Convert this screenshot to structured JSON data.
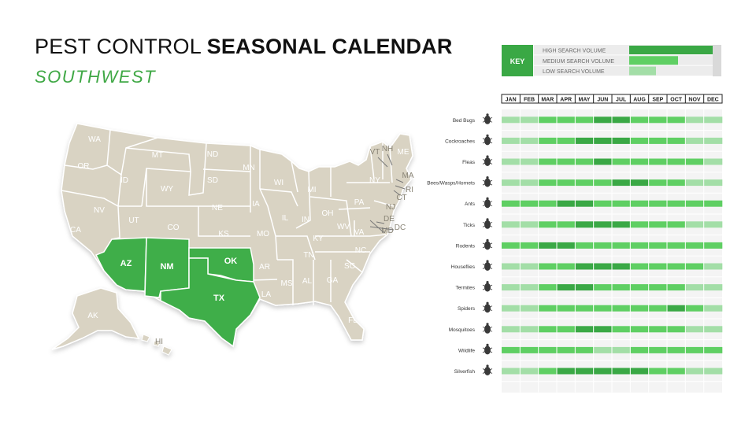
{
  "title": {
    "light": "PEST CONTROL ",
    "bold": "SEASONAL CALENDAR"
  },
  "subtitle": "SOUTHWEST",
  "colors": {
    "high": "#3aa845",
    "medium": "#5fcf63",
    "low": "#a3dea7",
    "background": "#ededed",
    "state_default": "#d9d3c3",
    "state_highlight": "#3fae49"
  },
  "key": {
    "label": "KEY",
    "levels": [
      {
        "label": "HIGH SEARCH VOLUME",
        "level": "high"
      },
      {
        "label": "MEDIUM SEARCH VOLUME",
        "level": "medium"
      },
      {
        "label": "LOW SEARCH VOLUME",
        "level": "low"
      }
    ]
  },
  "map": {
    "states": [
      "WA",
      "OR",
      "CA",
      "ID",
      "NV",
      "MT",
      "WY",
      "UT",
      "AZ",
      "CO",
      "NM",
      "ND",
      "SD",
      "NE",
      "KS",
      "OK",
      "TX",
      "MN",
      "IA",
      "MO",
      "AR",
      "LA",
      "WI",
      "IL",
      "MI",
      "IN",
      "OH",
      "KY",
      "TN",
      "MS",
      "AL",
      "GA",
      "FL",
      "SC",
      "NC",
      "VA",
      "WV",
      "PA",
      "NY",
      "ME",
      "VT",
      "NH",
      "MA",
      "RI",
      "CT",
      "NJ",
      "DE",
      "MD",
      "DC",
      "AK",
      "HI"
    ],
    "highlighted": [
      "AZ",
      "NM",
      "OK",
      "TX"
    ]
  },
  "chart_data": {
    "type": "heatmap",
    "title": "PEST CONTROL SEASONAL CALENDAR",
    "subtitle": "SOUTHWEST",
    "x": [
      "JAN",
      "FEB",
      "MAR",
      "APR",
      "MAY",
      "JUN",
      "JUL",
      "AUG",
      "SEP",
      "OCT",
      "NOV",
      "DEC"
    ],
    "y": [
      "Bed Bugs",
      "Cockroaches",
      "Fleas",
      "Bees/Wasps/Hornets",
      "Ants",
      "Ticks",
      "Rodents",
      "Houseflies",
      "Termites",
      "Spiders",
      "Mosquitoes",
      "Wildlife",
      "Silverfish"
    ],
    "levels": [
      "low",
      "medium",
      "high"
    ],
    "values": [
      [
        "low",
        "low",
        "medium",
        "medium",
        "medium",
        "high",
        "high",
        "medium",
        "medium",
        "medium",
        "low",
        "low"
      ],
      [
        "low",
        "low",
        "medium",
        "medium",
        "high",
        "high",
        "high",
        "medium",
        "medium",
        "medium",
        "low",
        "low"
      ],
      [
        "low",
        "low",
        "medium",
        "medium",
        "medium",
        "high",
        "medium",
        "medium",
        "medium",
        "medium",
        "medium",
        "low"
      ],
      [
        "low",
        "low",
        "medium",
        "medium",
        "medium",
        "medium",
        "high",
        "high",
        "medium",
        "medium",
        "low",
        "low"
      ],
      [
        "medium",
        "medium",
        "medium",
        "high",
        "high",
        "medium",
        "medium",
        "medium",
        "medium",
        "medium",
        "medium",
        "medium"
      ],
      [
        "low",
        "low",
        "medium",
        "medium",
        "high",
        "high",
        "high",
        "medium",
        "medium",
        "medium",
        "low",
        "low"
      ],
      [
        "medium",
        "medium",
        "high",
        "high",
        "medium",
        "medium",
        "medium",
        "medium",
        "medium",
        "medium",
        "medium",
        "medium"
      ],
      [
        "low",
        "low",
        "medium",
        "medium",
        "high",
        "high",
        "high",
        "medium",
        "medium",
        "medium",
        "medium",
        "low"
      ],
      [
        "low",
        "low",
        "medium",
        "high",
        "high",
        "medium",
        "medium",
        "medium",
        "medium",
        "medium",
        "low",
        "low"
      ],
      [
        "low",
        "low",
        "medium",
        "medium",
        "medium",
        "medium",
        "medium",
        "medium",
        "medium",
        "high",
        "medium",
        "low"
      ],
      [
        "low",
        "low",
        "medium",
        "medium",
        "high",
        "high",
        "medium",
        "medium",
        "medium",
        "medium",
        "low",
        "low"
      ],
      [
        "medium",
        "medium",
        "medium",
        "medium",
        "medium",
        "low",
        "low",
        "medium",
        "medium",
        "medium",
        "medium",
        "medium"
      ],
      [
        "low",
        "low",
        "medium",
        "high",
        "high",
        "high",
        "high",
        "high",
        "medium",
        "medium",
        "low",
        "low"
      ]
    ]
  },
  "icons": [
    "bed-bug-icon",
    "cockroach-icon",
    "flea-icon",
    "wasp-icon",
    "ant-icon",
    "tick-icon",
    "rodent-icon",
    "housefly-icon",
    "termite-icon",
    "spider-icon",
    "mosquito-icon",
    "wildlife-icon",
    "silverfish-icon"
  ]
}
